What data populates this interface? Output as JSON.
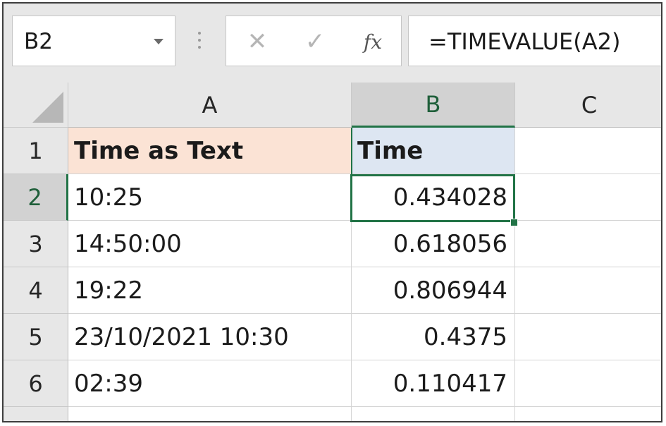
{
  "formula_bar": {
    "name_box": "B2",
    "cancel_icon": "✕",
    "enter_icon": "✓",
    "fx_label": "fx",
    "formula": "=TIMEVALUE(A2)"
  },
  "columns": [
    {
      "label": "A",
      "selected": false
    },
    {
      "label": "B",
      "selected": true
    },
    {
      "label": "C",
      "selected": false
    }
  ],
  "rows": [
    {
      "num": "1",
      "a": "Time as Text",
      "b": "Time",
      "c": ""
    },
    {
      "num": "2",
      "a": "10:25",
      "b": "0.434028",
      "c": ""
    },
    {
      "num": "3",
      "a": "14:50:00",
      "b": "0.618056",
      "c": ""
    },
    {
      "num": "4",
      "a": "19:22",
      "b": "0.806944",
      "c": ""
    },
    {
      "num": "5",
      "a": "23/10/2021 10:30",
      "b": "0.4375",
      "c": ""
    },
    {
      "num": "6",
      "a": "02:39",
      "b": "0.110417",
      "c": ""
    }
  ],
  "colors": {
    "selection": "#217346",
    "header_a_fill": "#fbe3d5",
    "header_b_fill": "#dde6f2"
  }
}
